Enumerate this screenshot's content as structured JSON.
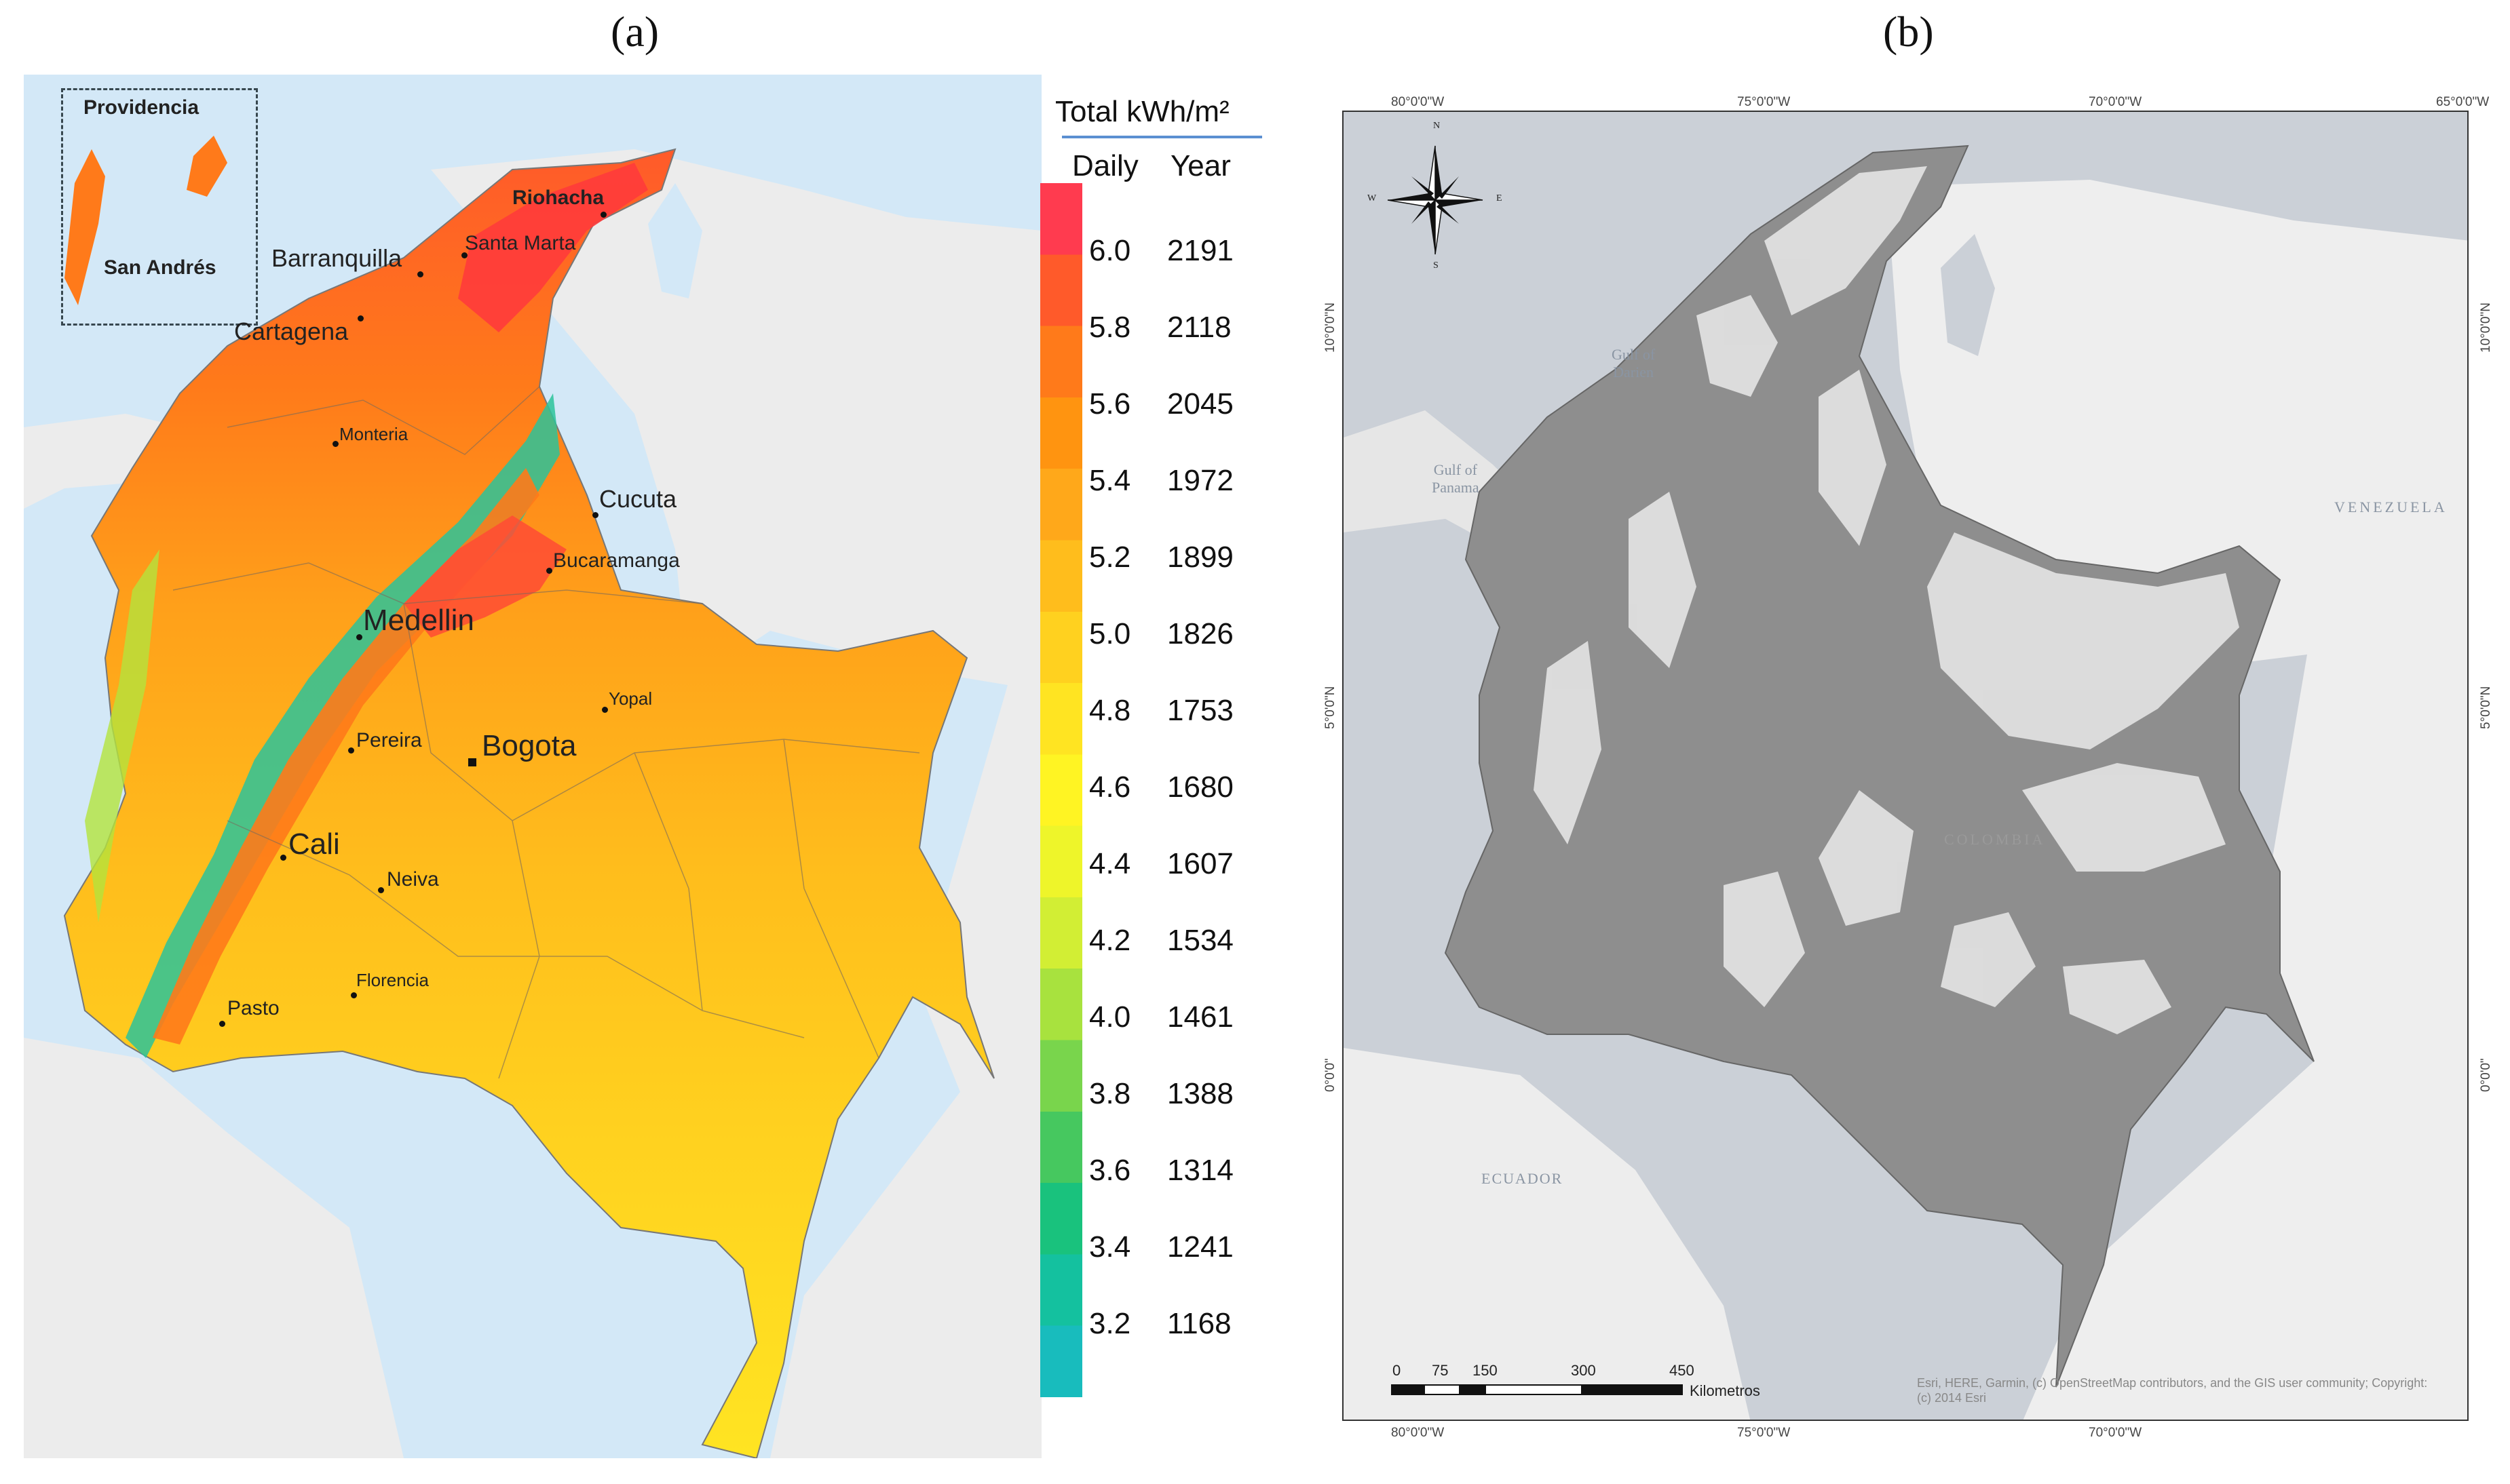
{
  "panel_a": {
    "label": "(a)",
    "legend": {
      "title": "Total kWh/m²",
      "col_daily": "Daily",
      "col_year": "Year",
      "colors": [
        "#ff3b4f",
        "#ff5a2a",
        "#ff7a1a",
        "#ff9410",
        "#ffa81a",
        "#ffbd1c",
        "#ffd11f",
        "#ffe422",
        "#fff423",
        "#eef52a",
        "#d2ee34",
        "#a8e23e",
        "#79d54c",
        "#46c85f",
        "#19c27d",
        "#14c19f",
        "#18bcbd"
      ],
      "entries": [
        {
          "daily": "6.0",
          "year": "2191"
        },
        {
          "daily": "5.8",
          "year": "2118"
        },
        {
          "daily": "5.6",
          "year": "2045"
        },
        {
          "daily": "5.4",
          "year": "1972"
        },
        {
          "daily": "5.2",
          "year": "1899"
        },
        {
          "daily": "5.0",
          "year": "1826"
        },
        {
          "daily": "4.8",
          "year": "1753"
        },
        {
          "daily": "4.6",
          "year": "1680"
        },
        {
          "daily": "4.4",
          "year": "1607"
        },
        {
          "daily": "4.2",
          "year": "1534"
        },
        {
          "daily": "4.0",
          "year": "1461"
        },
        {
          "daily": "3.8",
          "year": "1388"
        },
        {
          "daily": "3.6",
          "year": "1314"
        },
        {
          "daily": "3.4",
          "year": "1241"
        },
        {
          "daily": "3.2",
          "year": "1168"
        }
      ]
    },
    "inset": {
      "providencia": "Providencia",
      "san_andres": "San Andrés"
    },
    "cities": {
      "riohacha": "Riohacha",
      "barranquilla": "Barranquilla",
      "santa_marta": "Santa Marta",
      "cartagena": "Cartagena",
      "monteria": "Monteria",
      "cucuta": "Cucuta",
      "bucaramanga": "Bucaramanga",
      "medellin": "Medellin",
      "yopal": "Yopal",
      "pereira": "Pereira",
      "bogota": "Bogota",
      "cali": "Cali",
      "neiva": "Neiva",
      "florencia": "Florencia",
      "pasto": "Pasto"
    }
  },
  "panel_b": {
    "label": "(b)",
    "lon_labels": [
      "80°0'0\"W",
      "75°0'0\"W",
      "70°0'0\"W",
      "65°0'0\"W"
    ],
    "lat_labels": [
      "10°0'0\"N",
      "5°0'0\"N",
      "0°0'0\""
    ],
    "compass": {
      "n": "N",
      "s": "S",
      "e": "E",
      "w": "W"
    },
    "places": {
      "gulf_darien": "Gulf of\nDarien",
      "gulf_panama": "Gulf of\nPanama",
      "venezuela": "VENEZUELA",
      "ecuador": "ECUADOR",
      "colombia": "COLOMBIA"
    },
    "scale": {
      "ticks": [
        "0",
        "75",
        "150",
        "300",
        "450"
      ],
      "unit": "Kilometros"
    },
    "attribution": "Esri, HERE, Garmin, (c) OpenStreetMap contributors, and the GIS user community; Copyright:(c) 2014 Esri"
  }
}
